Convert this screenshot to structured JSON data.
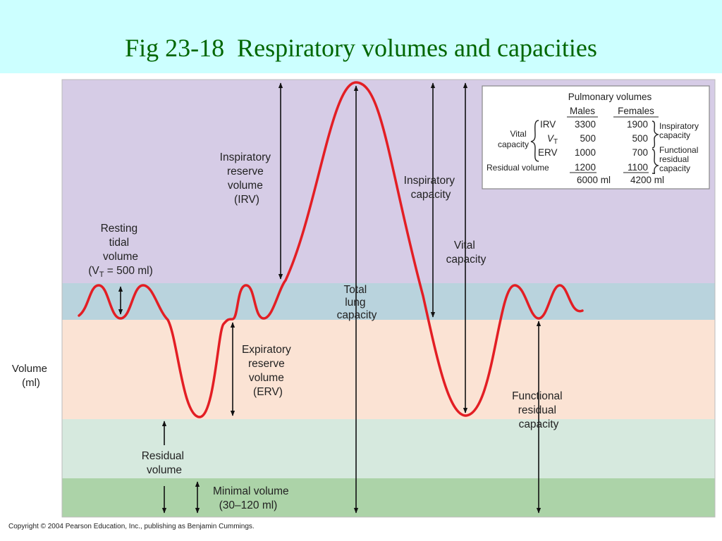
{
  "slide": {
    "title": "Fig 23-18  Respiratory volumes and capacities",
    "copyright": "Copyright © 2004 Pearson Education, Inc., publishing as Benjamin Cummings."
  },
  "colors": {
    "header_bg": "#ccffff",
    "title_text": "#006600",
    "band_irv": "#d6cce6",
    "band_tidal": "#b9d3dd",
    "band_erv": "#fbe3d4",
    "band_residual": "#d6e9de",
    "band_minimal": "#acd3a8",
    "trace": "#e31e24",
    "arrow": "#111111"
  },
  "diagram": {
    "axis_label": [
      "Volume",
      "(ml)"
    ],
    "resting_tidal": [
      "Resting",
      "tidal",
      "volume"
    ],
    "resting_tidal_eq": {
      "prefix": "(V",
      "sub": "T",
      "suffix": " = 500 ml)"
    },
    "irv": [
      "Inspiratory",
      "reserve",
      "volume",
      "(IRV)"
    ],
    "erv": [
      "Expiratory",
      "reserve",
      "volume",
      "(ERV)"
    ],
    "tlc": [
      "Total",
      "lung",
      "capacity"
    ],
    "ic": [
      "Inspiratory",
      "capacity"
    ],
    "vc": [
      "Vital",
      "capacity"
    ],
    "frc": [
      "Functional",
      "residual",
      "capacity"
    ],
    "rv": [
      "Residual",
      "volume"
    ],
    "minimal": [
      "Minimal volume",
      "(30–120 ml)"
    ]
  },
  "table": {
    "title": "Pulmonary volumes",
    "col_males": "Males",
    "col_females": "Females",
    "vital_capacity_label": [
      "Vital",
      "capacity"
    ],
    "rows": [
      {
        "label": "IRV",
        "males": "3300",
        "females": "1900"
      },
      {
        "label": "V",
        "label_sub": "T",
        "males": "500",
        "females": "500"
      },
      {
        "label": "ERV",
        "males": "1000",
        "females": "700"
      },
      {
        "label": "Residual volume",
        "males": "1200",
        "females": "1100"
      }
    ],
    "totals": {
      "males": "6000 ml",
      "females": "4200 ml"
    },
    "brace_inspiratory": [
      "Inspiratory",
      "capacity"
    ],
    "brace_frc": [
      "Functional",
      "residual",
      "capacity"
    ]
  }
}
